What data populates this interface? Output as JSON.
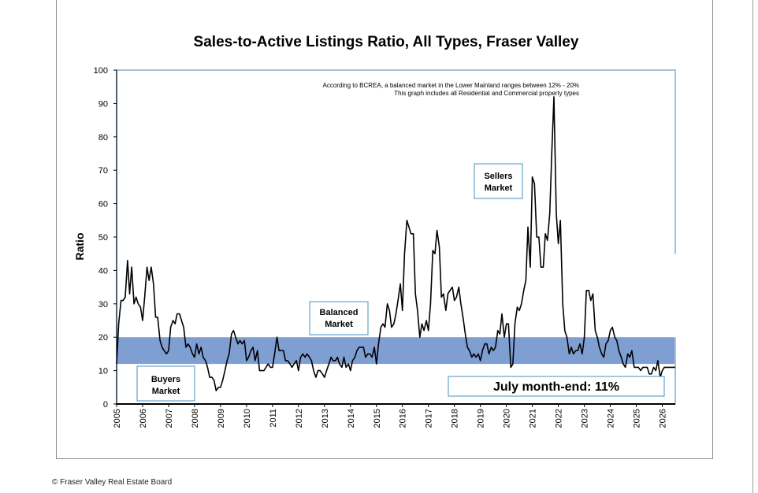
{
  "copyright": "© Fraser Valley Real Estate Board",
  "colors": {
    "band": "#7f9fd3",
    "line": "#000000",
    "plot_border": "#a7c0dc",
    "box_border": "#4a8fc0"
  },
  "chart_data": {
    "type": "line",
    "title": "Sales-to-Active Listings Ratio, All Types, Fraser Valley",
    "xlabel": "",
    "ylabel": "Ratio",
    "ylim": [
      0,
      100
    ],
    "yticks": [
      0,
      10,
      20,
      30,
      40,
      50,
      60,
      70,
      80,
      90,
      100
    ],
    "xlim": [
      2005,
      2026.5
    ],
    "xticks": [
      "2005",
      "2006",
      "2007",
      "2008",
      "2009",
      "2010",
      "2011",
      "2012",
      "2013",
      "2014",
      "2015",
      "2016",
      "2017",
      "2018",
      "2019",
      "2020",
      "2021",
      "2022",
      "2023",
      "2024",
      "2025",
      "2026"
    ],
    "grid": false,
    "balanced_band": [
      12,
      20
    ],
    "notes": [
      "According to BCREA, a balanced market in the Lower Mainland ranges between 12% - 20%",
      "This graph includes all Residential and Commercial property types"
    ],
    "labels": {
      "sellers": [
        "Sellers",
        "Market"
      ],
      "balanced": [
        "Balanced",
        "Market"
      ],
      "buyers": [
        "Buyers",
        "Market"
      ]
    },
    "callout": "July month-end: 11%",
    "series": [
      {
        "values": [
          [
            2005.0,
            12
          ],
          [
            2005.08,
            24
          ],
          [
            2005.17,
            31
          ],
          [
            2005.25,
            31
          ],
          [
            2005.33,
            32
          ],
          [
            2005.42,
            43
          ],
          [
            2005.5,
            33
          ],
          [
            2005.58,
            41
          ],
          [
            2005.67,
            30
          ],
          [
            2005.75,
            32
          ],
          [
            2005.83,
            30
          ],
          [
            2005.92,
            29
          ],
          [
            2006.0,
            25
          ],
          [
            2006.08,
            32
          ],
          [
            2006.17,
            41
          ],
          [
            2006.25,
            37
          ],
          [
            2006.33,
            41
          ],
          [
            2006.42,
            36
          ],
          [
            2006.5,
            26
          ],
          [
            2006.58,
            26
          ],
          [
            2006.67,
            19
          ],
          [
            2006.75,
            17
          ],
          [
            2006.83,
            16
          ],
          [
            2006.92,
            15
          ],
          [
            2007.0,
            16
          ],
          [
            2007.08,
            23
          ],
          [
            2007.17,
            25
          ],
          [
            2007.25,
            24
          ],
          [
            2007.33,
            27
          ],
          [
            2007.42,
            27
          ],
          [
            2007.5,
            25
          ],
          [
            2007.58,
            23
          ],
          [
            2007.67,
            17
          ],
          [
            2007.75,
            18
          ],
          [
            2007.83,
            17
          ],
          [
            2007.92,
            15
          ],
          [
            2008.0,
            14
          ],
          [
            2008.08,
            18
          ],
          [
            2008.17,
            15
          ],
          [
            2008.25,
            17
          ],
          [
            2008.33,
            14
          ],
          [
            2008.42,
            13
          ],
          [
            2008.5,
            11
          ],
          [
            2008.58,
            8
          ],
          [
            2008.67,
            8
          ],
          [
            2008.75,
            7
          ],
          [
            2008.83,
            4
          ],
          [
            2008.92,
            5
          ],
          [
            2009.0,
            5
          ],
          [
            2009.08,
            7
          ],
          [
            2009.17,
            10
          ],
          [
            2009.25,
            13
          ],
          [
            2009.33,
            15
          ],
          [
            2009.42,
            21
          ],
          [
            2009.5,
            22
          ],
          [
            2009.58,
            20
          ],
          [
            2009.67,
            18
          ],
          [
            2009.75,
            19
          ],
          [
            2009.83,
            18
          ],
          [
            2009.92,
            19
          ],
          [
            2010.0,
            13
          ],
          [
            2010.08,
            14
          ],
          [
            2010.17,
            16
          ],
          [
            2010.25,
            17
          ],
          [
            2010.33,
            13
          ],
          [
            2010.42,
            16
          ],
          [
            2010.5,
            10
          ],
          [
            2010.58,
            10
          ],
          [
            2010.67,
            10
          ],
          [
            2010.75,
            11
          ],
          [
            2010.83,
            12
          ],
          [
            2010.92,
            11
          ],
          [
            2011.0,
            11
          ],
          [
            2011.08,
            15
          ],
          [
            2011.17,
            20
          ],
          [
            2011.25,
            16
          ],
          [
            2011.33,
            16
          ],
          [
            2011.42,
            16
          ],
          [
            2011.5,
            13
          ],
          [
            2011.58,
            13
          ],
          [
            2011.67,
            12
          ],
          [
            2011.75,
            11
          ],
          [
            2011.83,
            12
          ],
          [
            2011.92,
            13
          ],
          [
            2012.0,
            10
          ],
          [
            2012.08,
            14
          ],
          [
            2012.17,
            15
          ],
          [
            2012.25,
            14
          ],
          [
            2012.33,
            15
          ],
          [
            2012.42,
            14
          ],
          [
            2012.5,
            13
          ],
          [
            2012.58,
            10
          ],
          [
            2012.67,
            8
          ],
          [
            2012.75,
            10
          ],
          [
            2012.83,
            10
          ],
          [
            2012.92,
            9
          ],
          [
            2013.0,
            8
          ],
          [
            2013.08,
            10
          ],
          [
            2013.17,
            12
          ],
          [
            2013.25,
            14
          ],
          [
            2013.33,
            13
          ],
          [
            2013.42,
            13
          ],
          [
            2013.5,
            14
          ],
          [
            2013.58,
            12
          ],
          [
            2013.67,
            11
          ],
          [
            2013.75,
            14
          ],
          [
            2013.83,
            11
          ],
          [
            2013.92,
            12
          ],
          [
            2014.0,
            10
          ],
          [
            2014.08,
            13
          ],
          [
            2014.17,
            14
          ],
          [
            2014.25,
            16
          ],
          [
            2014.33,
            17
          ],
          [
            2014.42,
            17
          ],
          [
            2014.5,
            17
          ],
          [
            2014.58,
            14
          ],
          [
            2014.67,
            15
          ],
          [
            2014.75,
            15
          ],
          [
            2014.83,
            14
          ],
          [
            2014.92,
            17
          ],
          [
            2015.0,
            12
          ],
          [
            2015.08,
            18
          ],
          [
            2015.17,
            23
          ],
          [
            2015.25,
            24
          ],
          [
            2015.33,
            23
          ],
          [
            2015.42,
            30
          ],
          [
            2015.5,
            28
          ],
          [
            2015.58,
            23
          ],
          [
            2015.67,
            24
          ],
          [
            2015.75,
            27
          ],
          [
            2015.83,
            31
          ],
          [
            2015.92,
            36
          ],
          [
            2016.0,
            28
          ],
          [
            2016.08,
            45
          ],
          [
            2016.17,
            55
          ],
          [
            2016.25,
            53
          ],
          [
            2016.33,
            51
          ],
          [
            2016.42,
            51
          ],
          [
            2016.5,
            33
          ],
          [
            2016.58,
            28
          ],
          [
            2016.67,
            20
          ],
          [
            2016.75,
            24
          ],
          [
            2016.83,
            22
          ],
          [
            2016.92,
            25
          ],
          [
            2017.0,
            22
          ],
          [
            2017.08,
            30
          ],
          [
            2017.17,
            46
          ],
          [
            2017.25,
            45
          ],
          [
            2017.33,
            52
          ],
          [
            2017.42,
            47
          ],
          [
            2017.5,
            32
          ],
          [
            2017.58,
            33
          ],
          [
            2017.67,
            28
          ],
          [
            2017.75,
            33
          ],
          [
            2017.83,
            34
          ],
          [
            2017.92,
            35
          ],
          [
            2018.0,
            31
          ],
          [
            2018.08,
            32
          ],
          [
            2018.17,
            35
          ],
          [
            2018.25,
            30
          ],
          [
            2018.33,
            26
          ],
          [
            2018.42,
            21
          ],
          [
            2018.5,
            17
          ],
          [
            2018.58,
            16
          ],
          [
            2018.67,
            14
          ],
          [
            2018.75,
            15
          ],
          [
            2018.83,
            14
          ],
          [
            2018.92,
            15
          ],
          [
            2019.0,
            13
          ],
          [
            2019.08,
            16
          ],
          [
            2019.17,
            18
          ],
          [
            2019.25,
            18
          ],
          [
            2019.33,
            15
          ],
          [
            2019.42,
            17
          ],
          [
            2019.5,
            16
          ],
          [
            2019.58,
            17
          ],
          [
            2019.67,
            22
          ],
          [
            2019.75,
            21
          ],
          [
            2019.83,
            27
          ],
          [
            2019.92,
            20
          ],
          [
            2020.0,
            24
          ],
          [
            2020.08,
            24
          ],
          [
            2020.17,
            11
          ],
          [
            2020.25,
            12
          ],
          [
            2020.33,
            24
          ],
          [
            2020.42,
            29
          ],
          [
            2020.5,
            28
          ],
          [
            2020.58,
            30
          ],
          [
            2020.67,
            34
          ],
          [
            2020.75,
            37
          ],
          [
            2020.83,
            53
          ],
          [
            2020.92,
            41
          ],
          [
            2021.0,
            68
          ],
          [
            2021.08,
            66
          ],
          [
            2021.17,
            50
          ],
          [
            2021.25,
            50
          ],
          [
            2021.33,
            41
          ],
          [
            2021.42,
            41
          ],
          [
            2021.5,
            51
          ],
          [
            2021.58,
            49
          ],
          [
            2021.67,
            57
          ],
          [
            2021.75,
            76
          ],
          [
            2021.83,
            92
          ],
          [
            2021.92,
            57
          ],
          [
            2022.0,
            48
          ],
          [
            2022.08,
            55
          ],
          [
            2022.17,
            30
          ],
          [
            2022.25,
            22
          ],
          [
            2022.33,
            20
          ],
          [
            2022.42,
            15
          ],
          [
            2022.5,
            17
          ],
          [
            2022.58,
            15
          ],
          [
            2022.67,
            16
          ],
          [
            2022.75,
            16
          ],
          [
            2022.83,
            18
          ],
          [
            2022.92,
            15
          ],
          [
            2023.0,
            20
          ],
          [
            2023.08,
            34
          ],
          [
            2023.17,
            34
          ],
          [
            2023.25,
            31
          ],
          [
            2023.33,
            33
          ],
          [
            2023.42,
            22
          ],
          [
            2023.5,
            20
          ],
          [
            2023.58,
            17
          ],
          [
            2023.67,
            15
          ],
          [
            2023.75,
            14
          ],
          [
            2023.83,
            18
          ],
          [
            2023.92,
            19
          ],
          [
            2024.0,
            22
          ],
          [
            2024.08,
            23
          ],
          [
            2024.17,
            20
          ],
          [
            2024.25,
            19
          ],
          [
            2024.33,
            16
          ],
          [
            2024.42,
            14
          ],
          [
            2024.5,
            12
          ],
          [
            2024.58,
            11
          ],
          [
            2024.67,
            15
          ],
          [
            2024.75,
            14
          ],
          [
            2024.83,
            16
          ],
          [
            2024.92,
            11
          ],
          [
            2025.0,
            11
          ],
          [
            2025.08,
            11
          ],
          [
            2025.17,
            10
          ],
          [
            2025.25,
            11
          ],
          [
            2025.33,
            11
          ],
          [
            2025.42,
            11
          ],
          [
            2025.5,
            9
          ],
          [
            2025.58,
            9
          ],
          [
            2025.67,
            11
          ],
          [
            2025.75,
            10
          ],
          [
            2025.83,
            13
          ],
          [
            2025.92,
            8
          ],
          [
            2026.0,
            10
          ],
          [
            2026.08,
            11
          ],
          [
            2026.17,
            11
          ],
          [
            2026.25,
            11
          ],
          [
            2026.33,
            11
          ],
          [
            2026.42,
            11
          ],
          [
            2026.5,
            11
          ]
        ]
      }
    ]
  }
}
